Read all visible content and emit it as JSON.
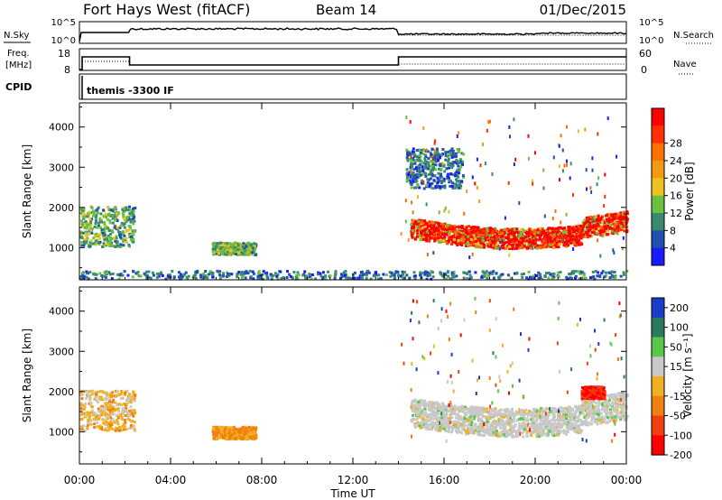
{
  "header": {
    "station": "Fort Hays West (fitACF)",
    "beam": "Beam 14",
    "date": "01/Dec/2015"
  },
  "strip": {
    "nsky_label": "N.Sky",
    "nsearch_label": "N.Search",
    "freq_label_1": "Freq.",
    "freq_label_2": "[MHz]",
    "nave_label": "Nave",
    "cpid_label": "CPID",
    "cpid_value": "themis -3300 IF",
    "noise_ticks_left": [
      "10^5",
      "10^0"
    ],
    "noise_ticks_right": [
      "10^5",
      "10^0"
    ],
    "freq_ticks": [
      "18",
      "8"
    ],
    "nave_ticks": [
      "60",
      "0"
    ]
  },
  "chart_data": [
    {
      "type": "heatmap",
      "panel": "power",
      "ylabel": "Slant Range [km]",
      "ytick_labels": [
        "1000",
        "2000",
        "3000",
        "4000"
      ],
      "ylim": [
        200,
        4600
      ],
      "xlim_hours": [
        0,
        24
      ],
      "colorbar_label": "Power [dB]",
      "colorbar_ticks": [
        "4",
        "8",
        "12",
        "16",
        "20",
        "24",
        "28"
      ],
      "colorbar_colors": [
        "#1a1aff",
        "#2050b0",
        "#3a8a70",
        "#6cc040",
        "#f0c020",
        "#f39a10",
        "#ff7000",
        "#ff3000",
        "#ff0000"
      ],
      "regions": [
        {
          "t": [
            0.0,
            2.4
          ],
          "r": [
            1050,
            2050
          ],
          "level": "mid"
        },
        {
          "t": [
            5.8,
            7.7
          ],
          "r": [
            850,
            1150
          ],
          "level": "mid"
        },
        {
          "t": [
            14.5,
            24.0
          ],
          "r": [
            1100,
            2100
          ],
          "level": "high"
        },
        {
          "t": [
            14.3,
            16.8
          ],
          "r": [
            2500,
            3500
          ],
          "level": "low"
        },
        {
          "t": [
            0.0,
            24.0
          ],
          "r": [
            250,
            450
          ],
          "level": "low"
        }
      ]
    },
    {
      "type": "heatmap",
      "panel": "velocity",
      "ylabel": "Slant Range [km]",
      "ytick_labels": [
        "1000",
        "2000",
        "3000",
        "4000"
      ],
      "ylim": [
        200,
        4600
      ],
      "xlim_hours": [
        0,
        24
      ],
      "xtick_labels": [
        "00:00",
        "04:00",
        "08:00",
        "12:00",
        "16:00",
        "20:00",
        "00:00"
      ],
      "xlabel": "Time UT",
      "colorbar_label": "Velocity [m s⁻¹]",
      "colorbar_ticks": [
        "200",
        "100",
        "50",
        "15",
        "-15",
        "-50",
        "-100",
        "-200"
      ],
      "colorbar_colors": [
        "#1a3cc8",
        "#2a7a60",
        "#58c848",
        "#c8c8c8",
        "#f0b020",
        "#f08010",
        "#f04010",
        "#ff0000"
      ],
      "regions": [
        {
          "t": [
            0.0,
            2.4
          ],
          "r": [
            1050,
            2050
          ],
          "level": "slow-away"
        },
        {
          "t": [
            5.8,
            7.7
          ],
          "r": [
            850,
            1150
          ],
          "level": "away"
        },
        {
          "t": [
            14.5,
            24.0
          ],
          "r": [
            1100,
            2100
          ],
          "level": "near-zero"
        },
        {
          "t": [
            22.0,
            23.0
          ],
          "r": [
            1850,
            2150
          ],
          "level": "fast-away"
        }
      ]
    }
  ]
}
